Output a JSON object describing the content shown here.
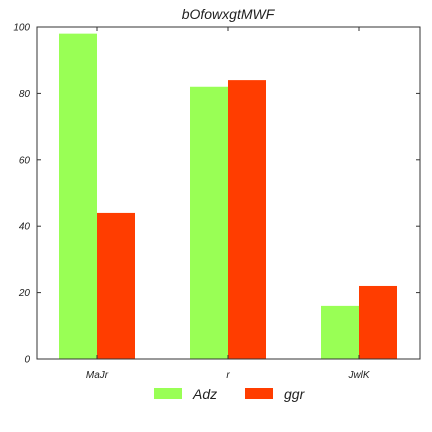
{
  "chart_data": {
    "type": "bar",
    "title": "bOfowxgtMWF",
    "xlabel": "",
    "ylabel": "",
    "categories": [
      "MaJr",
      "r",
      "JwlK"
    ],
    "series": [
      {
        "name": "Adz",
        "values": [
          98,
          82,
          16
        ],
        "color": "#99ff55"
      },
      {
        "name": "ggr",
        "values": [
          44,
          84,
          22
        ],
        "color": "#ff3d00"
      }
    ],
    "ylim": [
      0,
      100
    ],
    "yticks": [
      0,
      20,
      40,
      60,
      80,
      100
    ],
    "grid": false,
    "legend_position": "bottom-center"
  }
}
